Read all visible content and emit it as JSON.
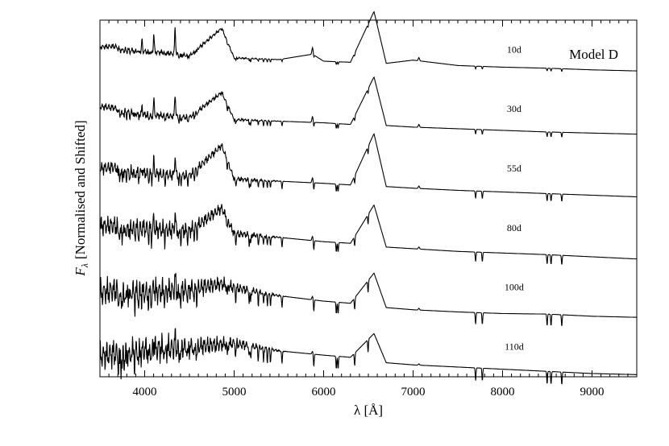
{
  "chart_data": {
    "type": "line",
    "annotation": "Model D",
    "xlabel": "λ [Å]",
    "ylabel_symbol": "F",
    "ylabel_subscript": "λ",
    "ylabel_text": "[Normalised and Shifted]",
    "xlim": [
      3500,
      9500
    ],
    "xticks": [
      4000,
      5000,
      6000,
      7000,
      8000,
      9000
    ],
    "xtick_labels": [
      "4000",
      "5000",
      "6000",
      "7000",
      "8000",
      "9000"
    ],
    "yticks_labeled": false,
    "ylim": [
      0,
      6.6
    ],
    "series": [
      {
        "name": "10d",
        "offset": 5.5,
        "x": [
          3500,
          3650,
          3800,
          4000,
          4200,
          4500,
          4861,
          5000,
          5500,
          5876,
          6000,
          6300,
          6563,
          6700,
          7000,
          7500,
          8000,
          8500,
          9000,
          9500
        ],
        "y": [
          0.6,
          0.62,
          0.55,
          0.52,
          0.5,
          0.44,
          0.95,
          0.4,
          0.37,
          0.47,
          0.34,
          0.32,
          1.26,
          0.3,
          0.36,
          0.26,
          0.23,
          0.21,
          0.18,
          0.16
        ]
      },
      {
        "name": "30d",
        "offset": 4.4,
        "x": [
          3500,
          3650,
          3800,
          4000,
          4200,
          4500,
          4861,
          5000,
          5500,
          6000,
          6300,
          6563,
          6700,
          7000,
          7500,
          8000,
          8500,
          9000,
          9500
        ],
        "y": [
          0.6,
          0.58,
          0.5,
          0.45,
          0.43,
          0.4,
          0.86,
          0.36,
          0.33,
          0.3,
          0.27,
          1.15,
          0.25,
          0.22,
          0.19,
          0.16,
          0.13,
          0.11,
          0.09
        ]
      },
      {
        "name": "55d",
        "offset": 3.3,
        "x": [
          3500,
          3650,
          3800,
          4000,
          4200,
          4500,
          4861,
          5000,
          5500,
          6000,
          6300,
          6563,
          6700,
          7000,
          7500,
          8000,
          8500,
          9000,
          9500
        ],
        "y": [
          0.55,
          0.58,
          0.5,
          0.47,
          0.44,
          0.42,
          0.98,
          0.36,
          0.32,
          0.28,
          0.25,
          1.2,
          0.22,
          0.19,
          0.15,
          0.12,
          0.09,
          0.06,
          0.03
        ]
      },
      {
        "name": "80d",
        "offset": 2.2,
        "x": [
          3500,
          3650,
          3800,
          4000,
          4200,
          4500,
          4861,
          5000,
          5500,
          6000,
          6300,
          6563,
          6700,
          7000,
          7500,
          8000,
          8500,
          9000,
          9500
        ],
        "y": [
          0.58,
          0.6,
          0.56,
          0.54,
          0.52,
          0.5,
          0.92,
          0.45,
          0.38,
          0.3,
          0.27,
          0.98,
          0.2,
          0.17,
          0.12,
          0.09,
          0.06,
          0.02,
          -0.02
        ]
      },
      {
        "name": "100d",
        "offset": 1.1,
        "x": [
          3500,
          3650,
          3800,
          4000,
          4200,
          4500,
          4861,
          5000,
          5500,
          6000,
          6300,
          6563,
          6700,
          7000,
          7500,
          8000,
          8500,
          9000,
          9500
        ],
        "y": [
          0.45,
          0.5,
          0.48,
          0.45,
          0.48,
          0.52,
          0.62,
          0.55,
          0.4,
          0.3,
          0.26,
          0.82,
          0.18,
          0.14,
          0.1,
          0.07,
          0.06,
          0.02,
          0.0
        ]
      },
      {
        "name": "110d",
        "offset": 0.0,
        "x": [
          3500,
          3650,
          3800,
          4000,
          4200,
          4500,
          4861,
          5000,
          5500,
          6000,
          6300,
          6563,
          6700,
          7000,
          7500,
          8000,
          8500,
          9000,
          9500
        ],
        "y": [
          0.38,
          0.42,
          0.46,
          0.5,
          0.52,
          0.55,
          0.6,
          0.62,
          0.48,
          0.4,
          0.36,
          0.8,
          0.26,
          0.22,
          0.18,
          0.14,
          0.1,
          0.06,
          0.04
        ]
      }
    ]
  }
}
